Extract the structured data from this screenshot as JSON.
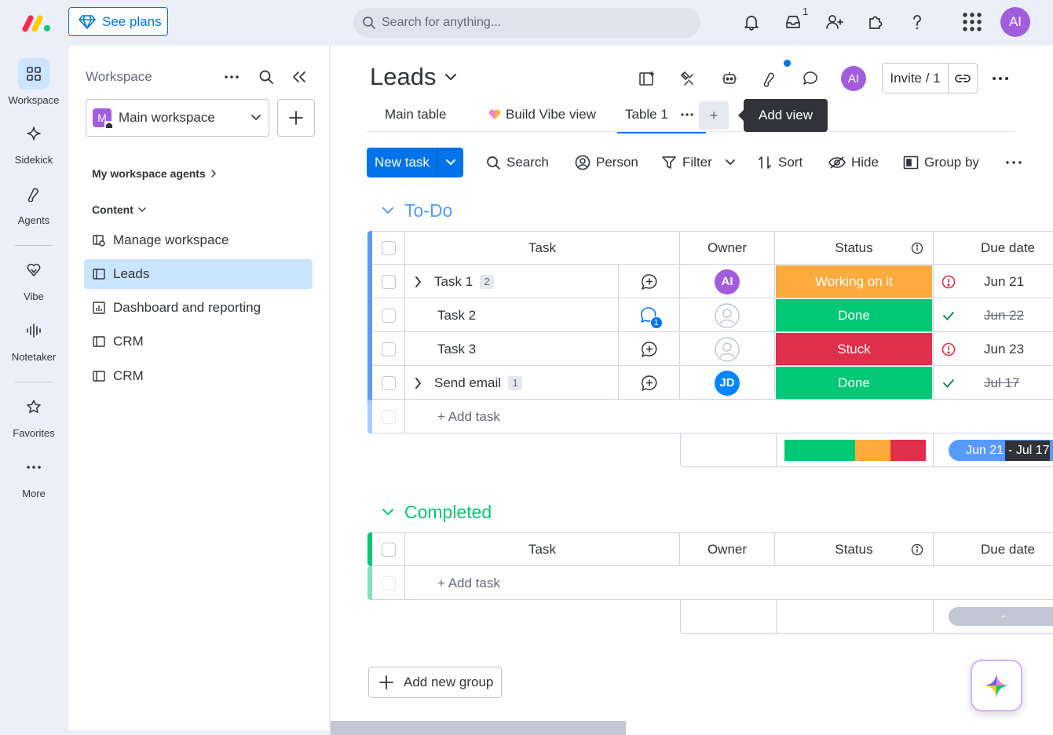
{
  "topbar": {
    "see_plans": "See plans",
    "search_placeholder": "Search for anything...",
    "inbox_count": "1",
    "avatar_initials": "AI"
  },
  "rail": {
    "items": [
      {
        "label": "Workspace",
        "icon": "grid-icon"
      },
      {
        "label": "Sidekick",
        "icon": "sparkle-icon"
      },
      {
        "label": "Agents",
        "icon": "agents-icon"
      },
      {
        "label": "Vibe",
        "icon": "heart-icon"
      },
      {
        "label": "Notetaker",
        "icon": "waveform-icon"
      },
      {
        "label": "Favorites",
        "icon": "star-icon"
      },
      {
        "label": "More",
        "icon": "more-icon"
      }
    ]
  },
  "workspace_panel": {
    "title": "Workspace",
    "selected_workspace": "Main workspace",
    "workspace_badge": "M",
    "agents_section": "My workspace agents",
    "content_section": "Content",
    "items": [
      {
        "label": "Manage workspace",
        "icon": "manage-workspace-icon"
      },
      {
        "label": "Leads",
        "icon": "board-icon"
      },
      {
        "label": "Dashboard and reporting",
        "icon": "dashboard-icon"
      },
      {
        "label": "CRM",
        "icon": "board-icon"
      },
      {
        "label": "CRM",
        "icon": "board-icon"
      }
    ]
  },
  "board": {
    "title": "Leads",
    "avatar_initials": "AI",
    "invite_label": "Invite / 1",
    "tabs": [
      {
        "label": "Main table"
      },
      {
        "label": "Build Vibe view"
      },
      {
        "label": "Table 1"
      }
    ],
    "add_tab": "+",
    "tooltip": "Add view",
    "toolbar": {
      "new_task": "New task",
      "search": "Search",
      "person": "Person",
      "filter": "Filter",
      "sort": "Sort",
      "hide": "Hide",
      "group_by": "Group by"
    },
    "columns": {
      "task": "Task",
      "owner": "Owner",
      "status": "Status",
      "due_date": "Due date"
    },
    "groups": [
      {
        "name": "To-Do",
        "color": "#579bfc",
        "rows": [
          {
            "task": "Task 1",
            "subitems": "2",
            "owner": "AI",
            "owner_color": "#a25ddc",
            "status": "Working on it",
            "status_color": "#fdab3d",
            "due": "Jun 21",
            "due_done": false
          },
          {
            "task": "Task 2",
            "subitems": "",
            "owner": "",
            "owner_color": "",
            "status": "Done",
            "status_color": "#00c875",
            "due": "Jun 22",
            "due_done": true,
            "updates": "1"
          },
          {
            "task": "Task 3",
            "subitems": "",
            "owner": "",
            "owner_color": "",
            "status": "Stuck",
            "status_color": "#df2f4a",
            "due": "Jun 23",
            "due_done": false
          },
          {
            "task": "Send email",
            "subitems": "1",
            "owner": "JD",
            "owner_color": "#0086ff",
            "status": "Done",
            "status_color": "#00c875",
            "due": "Jul 17",
            "due_done": true
          }
        ],
        "add_task": "+ Add task",
        "timeline_start": "Jun 21",
        "timeline_end": "- Jul 17",
        "status_summary": [
          {
            "status": "Done",
            "color": "#00c875",
            "share": 0.5
          },
          {
            "status": "Working on it",
            "color": "#fdab3d",
            "share": 0.25
          },
          {
            "status": "Stuck",
            "color": "#df2f4a",
            "share": 0.25
          }
        ]
      },
      {
        "name": "Completed",
        "color": "#00c875",
        "rows": [],
        "add_task": "+ Add task",
        "timeline_empty": "-"
      }
    ],
    "add_group": "Add new group"
  }
}
